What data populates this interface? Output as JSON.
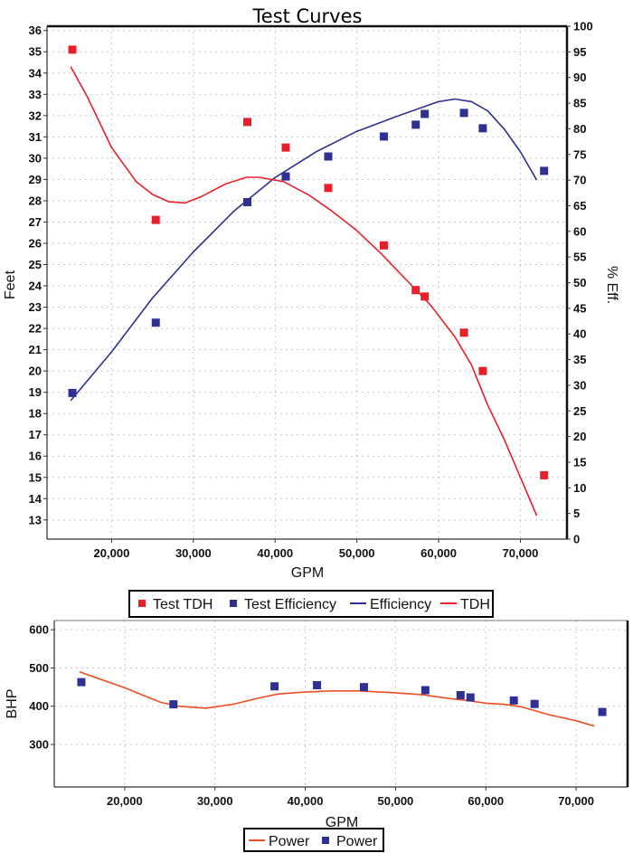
{
  "chart_data": [
    {
      "type": "line",
      "title": "Test Curves",
      "xlabel": "GPM",
      "ylabel": "Feet",
      "y2label": "% Eff.",
      "xlim": [
        12100,
        75700
      ],
      "ylim": [
        12.1,
        36.2
      ],
      "y2lim": [
        0,
        100
      ],
      "xticks": [
        20000,
        30000,
        40000,
        50000,
        60000,
        70000
      ],
      "xtick_labels": [
        "20,000",
        "30,000",
        "40,000",
        "50,000",
        "60,000",
        "70,000"
      ],
      "yticks": [
        13,
        14,
        15,
        16,
        17,
        18,
        19,
        20,
        21,
        22,
        23,
        24,
        25,
        26,
        27,
        28,
        29,
        30,
        31,
        32,
        33,
        34,
        35,
        36
      ],
      "y2ticks": [
        0,
        5,
        10,
        15,
        20,
        25,
        30,
        35,
        40,
        45,
        50,
        55,
        60,
        65,
        70,
        75,
        80,
        85,
        90,
        95,
        100
      ],
      "grid": true,
      "legend_position": "bottom",
      "series": [
        {
          "name": "Test TDH",
          "kind": "scatter",
          "axis": "left",
          "color": "#e8202a",
          "x": [
            15200,
            25400,
            36600,
            41300,
            46500,
            53300,
            57200,
            58300,
            63100,
            65400,
            72900
          ],
          "y": [
            35.1,
            27.1,
            31.7,
            30.5,
            28.6,
            25.9,
            23.8,
            23.5,
            21.8,
            20.0,
            15.1
          ]
        },
        {
          "name": "Test Efficiency",
          "kind": "scatter",
          "axis": "right",
          "color": "#2e3192",
          "x": [
            15200,
            25400,
            36600,
            41300,
            46500,
            53300,
            57200,
            58300,
            63100,
            65400,
            72900
          ],
          "y": [
            28.5,
            42.2,
            65.7,
            70.7,
            74.6,
            78.5,
            80.8,
            82.9,
            83.1,
            80.1,
            71.8
          ]
        },
        {
          "name": "Efficiency",
          "kind": "line",
          "axis": "right",
          "color": "#2e3192",
          "x": [
            15000,
            20000,
            25000,
            30000,
            35000,
            40000,
            45000,
            50000,
            55000,
            60000,
            62000,
            64000,
            66000,
            68000,
            70000,
            72000
          ],
          "y": [
            27,
            36.5,
            47,
            56,
            64,
            70.5,
            75.5,
            79.5,
            82.5,
            85.3,
            85.8,
            85.3,
            83.5,
            80,
            75.5,
            70
          ]
        },
        {
          "name": "TDH",
          "kind": "line",
          "axis": "left",
          "color": "#e8202a",
          "x": [
            15000,
            17000,
            20000,
            23000,
            25000,
            27000,
            29000,
            31000,
            34000,
            36500,
            38000,
            41000,
            44000,
            47000,
            50000,
            53000,
            56000,
            59000,
            62000,
            64000,
            66000,
            68000,
            70000,
            72000
          ],
          "y": [
            34.3,
            32.9,
            30.5,
            28.9,
            28.3,
            27.95,
            27.9,
            28.2,
            28.8,
            29.1,
            29.1,
            28.9,
            28.3,
            27.5,
            26.6,
            25.5,
            24.3,
            23.1,
            21.6,
            20.3,
            18.4,
            16.8,
            15.0,
            13.2
          ]
        }
      ]
    },
    {
      "type": "line",
      "title": "",
      "xlabel": "GPM",
      "ylabel": "BHP",
      "xlim": [
        12200,
        75700
      ],
      "ylim": [
        189,
        624
      ],
      "xticks": [
        20000,
        30000,
        40000,
        50000,
        60000,
        70000
      ],
      "xtick_labels": [
        "20,000",
        "30,000",
        "40,000",
        "50,000",
        "60,000",
        "70,000"
      ],
      "yticks": [
        300,
        400,
        500,
        600
      ],
      "grid": true,
      "legend_position": "bottom",
      "series": [
        {
          "name": "Power",
          "kind": "line",
          "color": "#f04e23",
          "x": [
            15000,
            20000,
            24000,
            26000,
            29000,
            32000,
            35000,
            37000,
            40000,
            43000,
            46000,
            50000,
            53000,
            56000,
            58000,
            60000,
            62000,
            64000,
            67000,
            70000,
            72000
          ],
          "y": [
            490,
            448,
            410,
            400,
            395,
            405,
            422,
            432,
            437,
            440,
            440,
            435,
            430,
            420,
            415,
            408,
            405,
            398,
            378,
            362,
            348
          ]
        },
        {
          "name": "Power",
          "kind": "scatter",
          "color": "#2e3192",
          "x": [
            15200,
            25400,
            36600,
            41300,
            46500,
            53300,
            57200,
            58300,
            63100,
            65400,
            72900
          ],
          "y": [
            463,
            405,
            452,
            455,
            450,
            442,
            429,
            423,
            415,
            406,
            385
          ]
        }
      ]
    }
  ]
}
